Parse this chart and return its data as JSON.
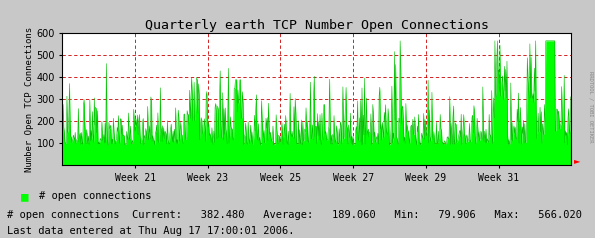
{
  "title": "Quarterly earth TCP Number Open Connections",
  "ylabel": "Number Open TCP Connections",
  "right_label": "RRDTOOL / TOBI OETIKER",
  "ylim": [
    0,
    600
  ],
  "yticks": [
    100,
    200,
    300,
    400,
    500,
    600
  ],
  "x_week_labels": [
    "Week 21",
    "Week 23",
    "Week 25",
    "Week 27",
    "Week 29",
    "Week 31"
  ],
  "bg_color": "#c8c8c8",
  "plot_bg_color": "#ffffff",
  "fill_color": "#00ff00",
  "line_color": "#00bb00",
  "legend_label": "# open connections",
  "stats_label": "# open connections",
  "current": "382.480",
  "average": "189.060",
  "min": "79.906",
  "max": "566.020",
  "last_data": "Last data entered at Thu Aug 17 17:00:01 2006.",
  "avg_value": 189.06,
  "min_value": 79.906,
  "max_value": 566.02,
  "n_points": 800,
  "seed": 42
}
